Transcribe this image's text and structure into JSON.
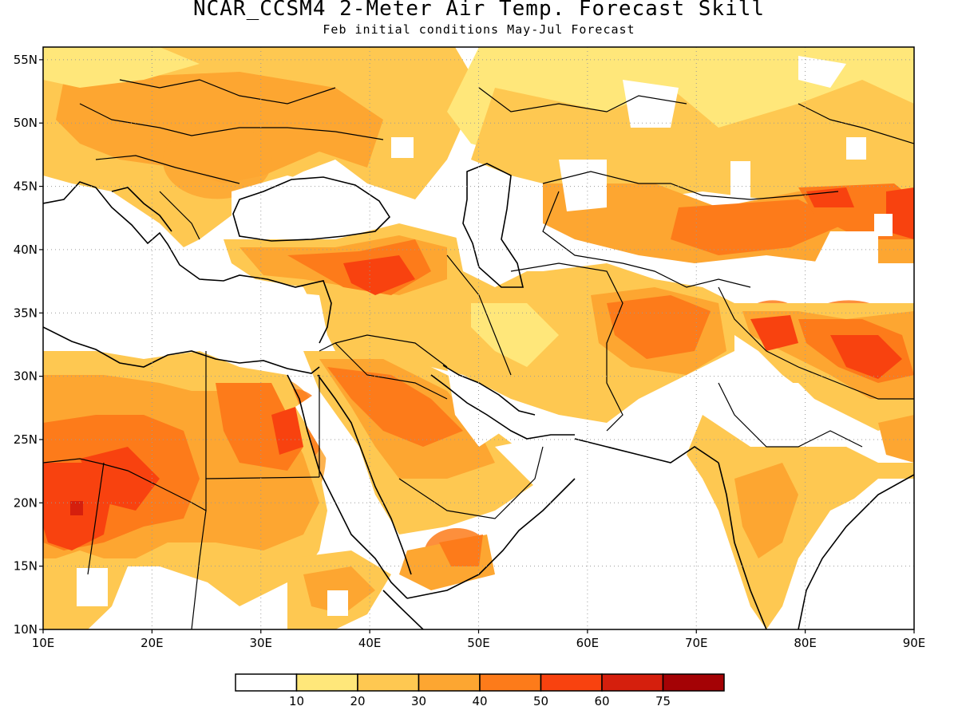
{
  "title": "NCAR_CCSM4 2-Meter Air Temp. Forecast Skill",
  "subtitle": "Feb initial conditions  May-Jul Forecast",
  "map": {
    "lon_range": [
      10,
      90
    ],
    "lat_range": [
      10,
      56
    ],
    "lon_ticks": [
      {
        "value": 10,
        "label": "10E"
      },
      {
        "value": 20,
        "label": "20E"
      },
      {
        "value": 30,
        "label": "30E"
      },
      {
        "value": 40,
        "label": "40E"
      },
      {
        "value": 50,
        "label": "50E"
      },
      {
        "value": 60,
        "label": "60E"
      },
      {
        "value": 70,
        "label": "70E"
      },
      {
        "value": 80,
        "label": "80E"
      },
      {
        "value": 90,
        "label": "90E"
      }
    ],
    "lat_ticks": [
      {
        "value": 10,
        "label": "10N"
      },
      {
        "value": 15,
        "label": "15N"
      },
      {
        "value": 20,
        "label": "20N"
      },
      {
        "value": 25,
        "label": "25N"
      },
      {
        "value": 30,
        "label": "30N"
      },
      {
        "value": 35,
        "label": "35N"
      },
      {
        "value": 40,
        "label": "40N"
      },
      {
        "value": 45,
        "label": "45N"
      },
      {
        "value": 50,
        "label": "50N"
      },
      {
        "value": 55,
        "label": "55N"
      }
    ],
    "grid": "dotted"
  },
  "legend": {
    "colors": [
      "#ffffff",
      "#ffe77a",
      "#fec851",
      "#fda631",
      "#fd7b1a",
      "#f8420f",
      "#d51f0d",
      "#a40205"
    ],
    "boundaries": [
      "10",
      "20",
      "30",
      "40",
      "50",
      "60",
      "75"
    ]
  },
  "field": {
    "blobs": [
      {
        "lon": 15,
        "lat": 20,
        "rx": 6,
        "ry": 4,
        "level": 5
      },
      {
        "lon": 20,
        "lat": 22,
        "rx": 9,
        "ry": 6,
        "level": 4
      },
      {
        "lon": 18,
        "lat": 26,
        "rx": 10,
        "ry": 5,
        "level": 3
      },
      {
        "lon": 31,
        "lat": 24,
        "rx": 5,
        "ry": 6,
        "level": 3
      },
      {
        "lon": 33,
        "lat": 26,
        "rx": 3,
        "ry": 3,
        "level": 4
      },
      {
        "lon": 44,
        "lat": 27,
        "rx": 6,
        "ry": 3,
        "level": 4
      },
      {
        "lon": 41,
        "lat": 37,
        "rx": 5,
        "ry": 3,
        "level": 4
      },
      {
        "lon": 48,
        "lat": 16,
        "rx": 3,
        "ry": 2,
        "level": 4
      },
      {
        "lon": 26,
        "lat": 47,
        "rx": 5,
        "ry": 3,
        "level": 3
      },
      {
        "lon": 64,
        "lat": 34,
        "rx": 7,
        "ry": 3,
        "level": 4
      },
      {
        "lon": 77,
        "lat": 34,
        "rx": 3,
        "ry": 2,
        "level": 4
      },
      {
        "lon": 84,
        "lat": 33,
        "rx": 5,
        "ry": 3,
        "level": 4
      },
      {
        "lon": 82,
        "lat": 42,
        "rx": 5,
        "ry": 3,
        "level": 3
      },
      {
        "lon": 88,
        "lat": 42,
        "rx": 2,
        "ry": 3,
        "level": 4
      }
    ]
  }
}
